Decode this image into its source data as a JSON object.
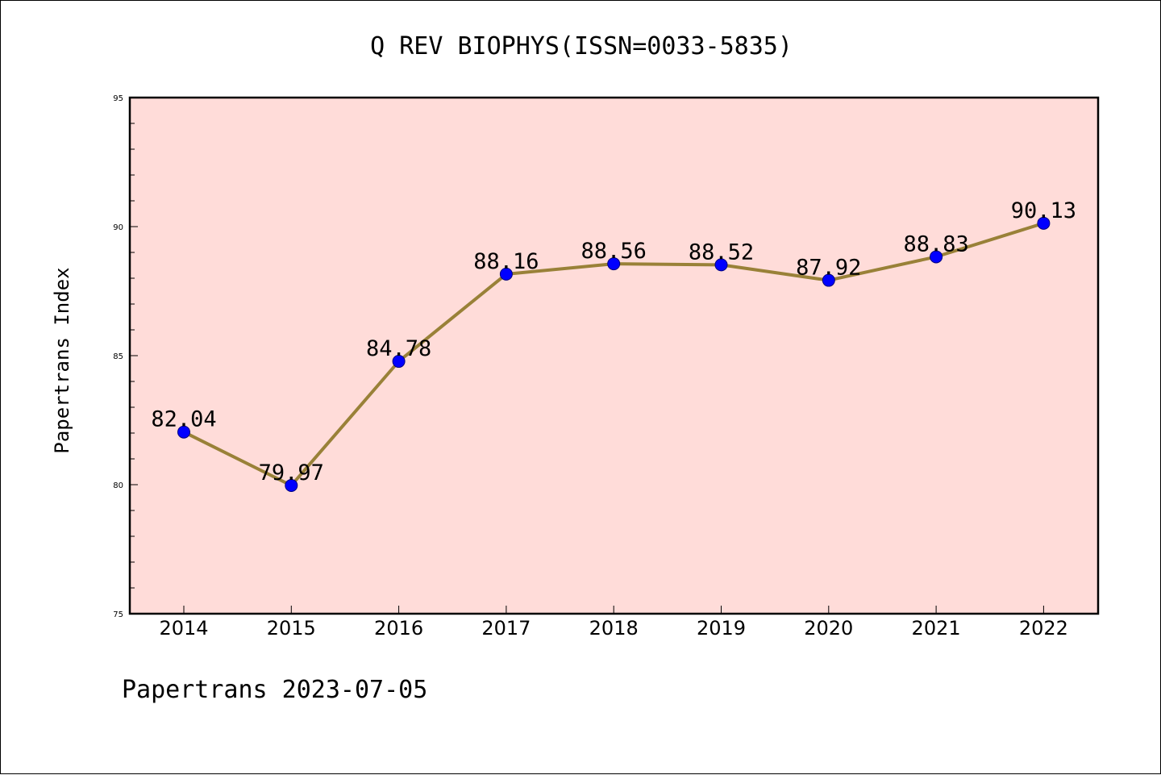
{
  "chart_data": {
    "type": "line",
    "title": "Q REV BIOPHYS(ISSN=0033-5835)",
    "ylabel": "Papertrans Index",
    "xlabel": "",
    "footer": "Papertrans 2023-07-05",
    "ylim": [
      75,
      95
    ],
    "yticks": [
      75,
      80,
      85,
      90,
      95
    ],
    "yminor_step": 1,
    "categories": [
      "2014",
      "2015",
      "2016",
      "2017",
      "2018",
      "2019",
      "2020",
      "2021",
      "2022"
    ],
    "series": [
      {
        "values": [
          82.04,
          79.97,
          84.78,
          88.16,
          88.56,
          88.52,
          87.92,
          88.83,
          90.13
        ],
        "labels": [
          "82.04",
          "79.97",
          "84.78",
          "88.16",
          "88.56",
          "88.52",
          "87.92",
          "88.83",
          "90.13"
        ]
      }
    ],
    "grid": false,
    "colors": {
      "plot_background": "#ffdcd9",
      "line": "#998138",
      "marker": "#0000ff",
      "marker_edge": "#000080",
      "axis": "#000000"
    }
  }
}
